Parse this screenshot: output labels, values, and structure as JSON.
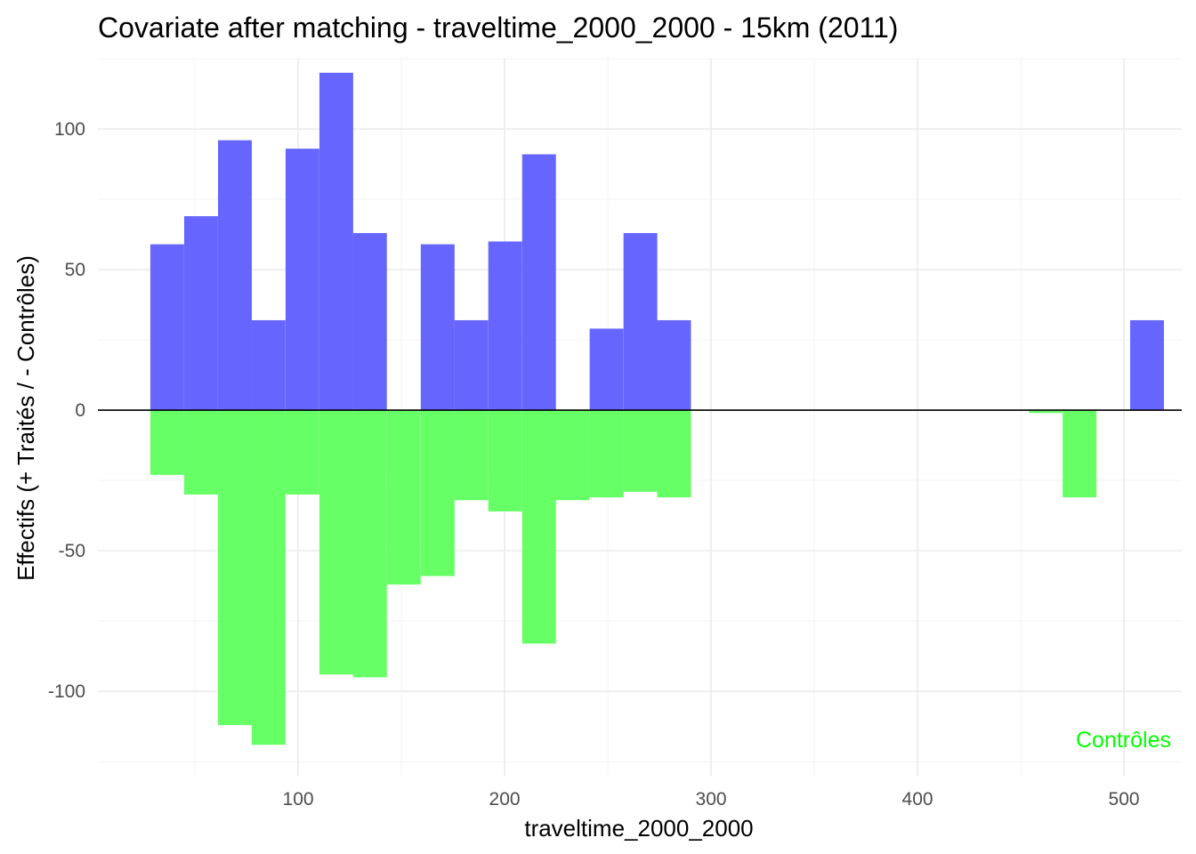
{
  "chart_data": {
    "type": "bar",
    "title": "Covariate after matching - traveltime_2000_2000 - 15km (2011)",
    "xlabel": "traveltime_2000_2000",
    "ylabel": "Effectifs (+ Traités / - Contrôles)",
    "xlim": [
      3,
      528
    ],
    "ylim": [
      -130,
      125
    ],
    "x_ticks": [
      100,
      200,
      300,
      400,
      500
    ],
    "y_ticks": [
      -100,
      -50,
      0,
      50,
      100
    ],
    "grid": true,
    "bin_width": 16.36,
    "series": [
      {
        "name": "Traités",
        "color": "#6666ff",
        "bars": [
          {
            "x0": 28.4,
            "value": 59
          },
          {
            "x0": 44.8,
            "value": 69
          },
          {
            "x0": 61.2,
            "value": 96
          },
          {
            "x0": 77.5,
            "value": 32
          },
          {
            "x0": 93.9,
            "value": 93
          },
          {
            "x0": 110.3,
            "value": 120
          },
          {
            "x0": 126.6,
            "value": 63
          },
          {
            "x0": 159.4,
            "value": 59
          },
          {
            "x0": 175.7,
            "value": 32
          },
          {
            "x0": 192.1,
            "value": 60
          },
          {
            "x0": 208.5,
            "value": 91
          },
          {
            "x0": 241.2,
            "value": 29
          },
          {
            "x0": 257.6,
            "value": 63
          },
          {
            "x0": 273.9,
            "value": 32
          },
          {
            "x0": 503.0,
            "value": 32
          }
        ]
      },
      {
        "name": "Contrôles",
        "color": "#66ff66",
        "bars": [
          {
            "x0": 28.4,
            "value": -23
          },
          {
            "x0": 44.8,
            "value": -30
          },
          {
            "x0": 61.2,
            "value": -112
          },
          {
            "x0": 77.5,
            "value": -119
          },
          {
            "x0": 93.9,
            "value": -30
          },
          {
            "x0": 110.3,
            "value": -94
          },
          {
            "x0": 126.6,
            "value": -95
          },
          {
            "x0": 143.0,
            "value": -62
          },
          {
            "x0": 159.4,
            "value": -59
          },
          {
            "x0": 175.7,
            "value": -32
          },
          {
            "x0": 192.1,
            "value": -36
          },
          {
            "x0": 208.5,
            "value": -83
          },
          {
            "x0": 224.8,
            "value": -32
          },
          {
            "x0": 241.2,
            "value": -31
          },
          {
            "x0": 257.6,
            "value": -29
          },
          {
            "x0": 273.9,
            "value": -31
          },
          {
            "x0": 454.0,
            "value": -1
          },
          {
            "x0": 470.3,
            "value": -31
          }
        ]
      }
    ],
    "annotations": [
      {
        "text": "Contrôles",
        "color": "#00ff00",
        "placement": "bottom-right"
      }
    ]
  }
}
